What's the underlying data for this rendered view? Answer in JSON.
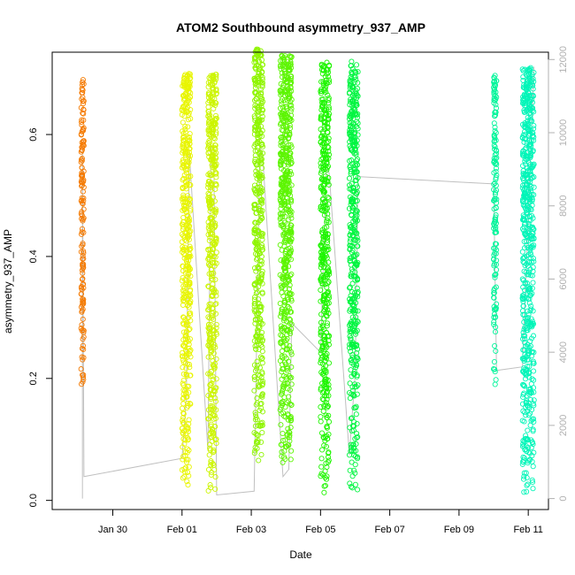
{
  "chart_data": {
    "type": "scatter",
    "title": "ATOM2 Southbound asymmetry_937_AMP",
    "xlabel": "Date",
    "ylabel": "asymmetry_937_AMP",
    "xlim": [
      "2022-01-28T06:00",
      "2022-02-11T14:00"
    ],
    "ylim": [
      -0.015,
      0.735
    ],
    "x_ticks": [
      "Jan 30",
      "Feb 01",
      "Feb 03",
      "Feb 05",
      "Feb 07",
      "Feb 09",
      "Feb 11"
    ],
    "x_tick_dates": [
      "2022-01-30",
      "2022-02-01",
      "2022-02-03",
      "2022-02-05",
      "2022-02-07",
      "2022-02-09",
      "2022-02-11"
    ],
    "y_ticks": [
      0.0,
      0.2,
      0.4,
      0.6
    ],
    "y_tick_labels": [
      "0.0",
      "0.2",
      "0.4",
      "0.6"
    ],
    "y2_ticks": [
      0,
      2000,
      4000,
      6000,
      8000,
      10000,
      12000
    ],
    "y2_tick_labels": [
      "0",
      "2000",
      "4000",
      "6000",
      "8000",
      "10000",
      "12000"
    ],
    "y2lim": [
      -300,
      12200
    ],
    "grid": false,
    "legend": "none",
    "series": [
      {
        "start": "2022-01-29T02:00",
        "end": "2022-01-29T04:00",
        "ymin": 0.17,
        "ymax": 0.69,
        "color": "#F57A00"
      },
      {
        "start": "2022-02-01T00:00",
        "end": "2022-02-01T06:00",
        "ymin": 0.01,
        "ymax": 0.7,
        "color": "#E8F500"
      },
      {
        "start": "2022-02-01T18:00",
        "end": "2022-02-02T00:00",
        "ymin": 0.01,
        "ymax": 0.7,
        "color": "#CCF500"
      },
      {
        "start": "2022-02-03T02:00",
        "end": "2022-02-03T08:00",
        "ymin": 0.06,
        "ymax": 0.74,
        "color": "#8FF500"
      },
      {
        "start": "2022-02-03T20:00",
        "end": "2022-02-04T04:00",
        "ymin": 0.06,
        "ymax": 0.73,
        "color": "#5CF500"
      },
      {
        "start": "2022-02-05T00:00",
        "end": "2022-02-05T06:00",
        "ymin": 0.01,
        "ymax": 0.72,
        "color": "#1EF500"
      },
      {
        "start": "2022-02-05T20:00",
        "end": "2022-02-06T02:00",
        "ymin": 0.01,
        "ymax": 0.72,
        "color": "#00F540"
      },
      {
        "start": "2022-02-10T00:00",
        "end": "2022-02-10T02:00",
        "ymin": 0.18,
        "ymax": 0.7,
        "color": "#00F59A"
      },
      {
        "start": "2022-02-10T20:00",
        "end": "2022-02-11T04:00",
        "ymin": 0.01,
        "ymax": 0.71,
        "color": "#00F5B8"
      }
    ],
    "index_line": {
      "color": "#c0c0c0",
      "points": [
        [
          "2022-01-29T03:00",
          0
        ],
        [
          "2022-01-29T03:00",
          9500
        ],
        [
          "2022-01-29T04:00",
          600
        ],
        [
          "2022-02-01T00:00",
          1100
        ],
        [
          "2022-02-01T03:00",
          2800
        ],
        [
          "2022-02-01T05:00",
          9500
        ],
        [
          "2022-02-01T18:00",
          1300
        ],
        [
          "2022-02-01T20:00",
          9600
        ],
        [
          "2022-02-01T22:00",
          9600
        ],
        [
          "2022-02-02T00:00",
          100
        ],
        [
          "2022-02-03T02:00",
          200
        ],
        [
          "2022-02-03T06:00",
          9600
        ],
        [
          "2022-02-03T08:00",
          9300
        ],
        [
          "2022-02-03T22:00",
          600
        ],
        [
          "2022-02-04T02:00",
          800
        ],
        [
          "2022-02-04T04:00",
          4800
        ],
        [
          "2022-02-05T00:00",
          4000
        ],
        [
          "2022-02-05T04:00",
          9000
        ],
        [
          "2022-02-05T06:00",
          8900
        ],
        [
          "2022-02-05T20:00",
          1200
        ],
        [
          "2022-02-06T00:00",
          3400
        ],
        [
          "2022-02-06T02:00",
          8800
        ],
        [
          "2022-02-10T00:00",
          8600
        ],
        [
          "2022-02-10T02:00",
          3500
        ],
        [
          "2022-02-10T20:00",
          3600
        ],
        [
          "2022-02-11T04:00",
          11800
        ]
      ]
    }
  }
}
